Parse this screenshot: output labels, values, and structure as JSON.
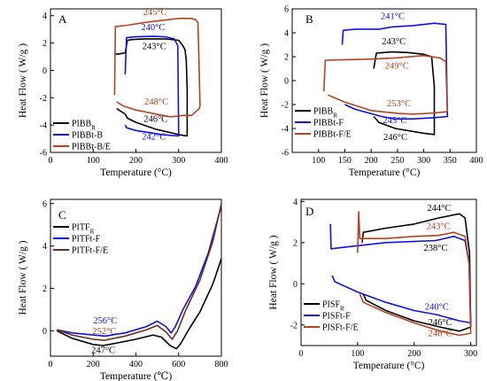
{
  "colors": {
    "black": "#000000",
    "blue": "#1010e6",
    "red": "#b5421e",
    "dark": "#6b3020"
  },
  "chart_data": [
    {
      "type": "line",
      "panel": "A",
      "xlabel": "Temperature (°C)",
      "ylabel": "Heat Flow  ( W/g )",
      "xlim": [
        0,
        400
      ],
      "ylim": [
        -6,
        4.5
      ],
      "xticks": [
        0,
        100,
        200,
        300,
        400
      ],
      "yticks": [
        -6,
        -4,
        -2,
        0,
        2,
        4
      ],
      "series": [
        {
          "name": "PIBB",
          "sub": "R",
          "color": "#000000",
          "points": [
            [
              150,
              1.2
            ],
            [
              160,
              1.2
            ],
            [
              170,
              1.25
            ],
            [
              175,
              1.3
            ],
            [
              180,
              2.2
            ],
            [
              190,
              2.25
            ],
            [
              220,
              2.3
            ],
            [
              243,
              2.3
            ],
            [
              270,
              2.3
            ],
            [
              300,
              2.2
            ],
            [
              305,
              2.0
            ],
            [
              310,
              1.8
            ],
            [
              315,
              1.5
            ],
            [
              318,
              0.7
            ],
            [
              320,
              -1.5
            ],
            [
              320,
              -4.8
            ],
            [
              300,
              -4.7
            ],
            [
              246,
              -4.3
            ],
            [
              200,
              -3.8
            ],
            [
              180,
              -3.5
            ],
            [
              175,
              -3.2
            ],
            [
              155,
              -2.8
            ]
          ]
        },
        {
          "name": "PIBBt-B",
          "sub": "",
          "color": "#1010e6",
          "points": [
            [
              175,
              -0.3
            ],
            [
              178,
              2.4
            ],
            [
              200,
              2.45
            ],
            [
              240,
              2.5
            ],
            [
              270,
              2.45
            ],
            [
              290,
              2.3
            ],
            [
              298,
              1.8
            ],
            [
              300,
              -4.8
            ],
            [
              260,
              -4.7
            ],
            [
              242,
              -4.6
            ],
            [
              200,
              -4.4
            ],
            [
              178,
              -4.2
            ],
            [
              175,
              -4.0
            ]
          ]
        },
        {
          "name": "PIBBt-B/E",
          "sub": "",
          "color": "#b5421e",
          "points": [
            [
              150,
              -1.8
            ],
            [
              152,
              3.2
            ],
            [
              180,
              3.3
            ],
            [
              220,
              3.5
            ],
            [
              245,
              3.6
            ],
            [
              300,
              3.8
            ],
            [
              330,
              3.8
            ],
            [
              340,
              3.7
            ],
            [
              345,
              3.5
            ],
            [
              347,
              1.5
            ],
            [
              350,
              -2.6
            ],
            [
              348,
              -2.8
            ],
            [
              330,
              -3.3
            ],
            [
              310,
              -3.3
            ],
            [
              280,
              -3.4
            ],
            [
              248,
              -3.2
            ],
            [
              200,
              -2.9
            ],
            [
              170,
              -2.6
            ],
            [
              155,
              -2.3
            ]
          ]
        }
      ],
      "annotations": [
        {
          "text": "245°C",
          "x": 245,
          "y": 4.05,
          "color": "#b5421e"
        },
        {
          "text": "240°C",
          "x": 240,
          "y": 2.95,
          "color": "#1010e6"
        },
        {
          "text": "243°C",
          "x": 243,
          "y": 1.55,
          "color": "#000000"
        },
        {
          "text": "248°C",
          "x": 248,
          "y": -2.5,
          "color": "#b5421e"
        },
        {
          "text": "246°C",
          "x": 246,
          "y": -3.75,
          "color": "#000000"
        },
        {
          "text": "242°C",
          "x": 242,
          "y": -5.05,
          "color": "#1010e6"
        }
      ]
    },
    {
      "type": "line",
      "panel": "B",
      "xlabel": "Temperature (°C)",
      "ylabel": "Heat Flow  ( W/g )",
      "xlim": [
        50,
        400
      ],
      "ylim": [
        -6,
        6
      ],
      "xticks": [
        100,
        150,
        200,
        250,
        300,
        350,
        400
      ],
      "yticks": [
        -6,
        -4,
        -2,
        0,
        2,
        4,
        6
      ],
      "series": [
        {
          "name": "PIBB",
          "sub": "R",
          "color": "#000000",
          "points": [
            [
              205,
              1.0
            ],
            [
              210,
              2.3
            ],
            [
              240,
              2.4
            ],
            [
              270,
              2.35
            ],
            [
              300,
              2.2
            ],
            [
              315,
              2.0
            ],
            [
              318,
              0.5
            ],
            [
              320,
              -0.5
            ],
            [
              320,
              -4.5
            ],
            [
              300,
              -4.4
            ],
            [
              246,
              -4.0
            ],
            [
              215,
              -3.5
            ],
            [
              205,
              -3.0
            ]
          ]
        },
        {
          "name": "PIBBt-F",
          "sub": "",
          "color": "#1010e6",
          "points": [
            [
              145,
              3.0
            ],
            [
              147,
              4.2
            ],
            [
              170,
              4.3
            ],
            [
              215,
              4.3
            ],
            [
              241,
              4.5
            ],
            [
              280,
              4.6
            ],
            [
              320,
              4.8
            ],
            [
              342,
              4.7
            ],
            [
              345,
              -3.0
            ],
            [
              320,
              -3.1
            ],
            [
              280,
              -3.2
            ],
            [
              245,
              -3.2
            ],
            [
              220,
              -3.0
            ],
            [
              170,
              -2.4
            ],
            [
              150,
              -2.0
            ]
          ]
        },
        {
          "name": "PIBBt-F/E",
          "sub": "",
          "color": "#b5421e",
          "points": [
            [
              110,
              -0.9
            ],
            [
              113,
              1.7
            ],
            [
              150,
              1.75
            ],
            [
              200,
              1.8
            ],
            [
              249,
              1.9
            ],
            [
              300,
              2.1
            ],
            [
              330,
              1.9
            ],
            [
              342,
              1.6
            ],
            [
              345,
              -2.6
            ],
            [
              320,
              -2.7
            ],
            [
              280,
              -2.8
            ],
            [
              253,
              -2.75
            ],
            [
              200,
              -2.5
            ],
            [
              150,
              -1.8
            ],
            [
              118,
              -1.2
            ]
          ]
        }
      ],
      "annotations": [
        {
          "text": "241°C",
          "x": 241,
          "y": 5.15,
          "color": "#1010e6"
        },
        {
          "text": "243°C",
          "x": 243,
          "y": 3.05,
          "color": "#000000"
        },
        {
          "text": "249°C",
          "x": 249,
          "y": 1.0,
          "color": "#b5421e"
        },
        {
          "text": "253°C",
          "x": 253,
          "y": -2.15,
          "color": "#b5421e"
        },
        {
          "text": "245°C",
          "x": 245,
          "y": -3.55,
          "color": "#1010e6"
        },
        {
          "text": "246°C",
          "x": 246,
          "y": -4.95,
          "color": "#000000"
        }
      ]
    },
    {
      "type": "line",
      "panel": "C",
      "xlabel": "Temperature (℃)",
      "ylabel": "Heat Flow  ( W/g )",
      "xlim": [
        0,
        800
      ],
      "ylim": [
        -1.2,
        6.2
      ],
      "xticks": [
        0,
        200,
        400,
        600,
        800
      ],
      "yticks": [
        0,
        2,
        4,
        6
      ],
      "series": [
        {
          "name": "PITF",
          "sub": "R",
          "color": "#000000",
          "points": [
            [
              30,
              0.0
            ],
            [
              100,
              -0.35
            ],
            [
              200,
              -0.65
            ],
            [
              247,
              -0.7
            ],
            [
              300,
              -0.6
            ],
            [
              400,
              -0.4
            ],
            [
              480,
              -0.2
            ],
            [
              520,
              -0.3
            ],
            [
              560,
              -0.7
            ],
            [
              590,
              -0.85
            ],
            [
              610,
              -0.6
            ],
            [
              650,
              0.1
            ],
            [
              700,
              0.9
            ],
            [
              760,
              2.2
            ],
            [
              800,
              3.4
            ]
          ]
        },
        {
          "name": "PITFt-F",
          "sub": "",
          "color": "#1010e6",
          "points": [
            [
              30,
              0.05
            ],
            [
              100,
              -0.1
            ],
            [
              200,
              -0.2
            ],
            [
              256,
              -0.25
            ],
            [
              350,
              -0.1
            ],
            [
              450,
              0.2
            ],
            [
              500,
              0.45
            ],
            [
              540,
              0.2
            ],
            [
              565,
              -0.1
            ],
            [
              585,
              0.2
            ],
            [
              620,
              1.0
            ],
            [
              680,
              2.1
            ],
            [
              740,
              3.7
            ],
            [
              800,
              5.9
            ]
          ]
        },
        {
          "name": "PITFt-F/E",
          "sub": "",
          "color": "#6b3020",
          "points": [
            [
              30,
              0.05
            ],
            [
              100,
              -0.2
            ],
            [
              200,
              -0.4
            ],
            [
              252,
              -0.45
            ],
            [
              350,
              -0.25
            ],
            [
              450,
              0.05
            ],
            [
              500,
              0.25
            ],
            [
              540,
              -0.05
            ],
            [
              570,
              -0.4
            ],
            [
              595,
              0.0
            ],
            [
              630,
              0.9
            ],
            [
              700,
              2.4
            ],
            [
              760,
              4.2
            ],
            [
              800,
              6.0
            ]
          ]
        }
      ],
      "annotations": [
        {
          "text": "256°C",
          "x": 256,
          "y": 0.35,
          "color": "#1010e6"
        },
        {
          "text": "252°C",
          "x": 252,
          "y": -0.15,
          "color": "#b5421e"
        },
        {
          "text": "247°C",
          "x": 247,
          "y": -1.05,
          "color": "#000000"
        }
      ]
    },
    {
      "type": "line",
      "panel": "D",
      "xlabel": "Temperature (°C)",
      "ylabel": "Heat Flow  ( W/g )",
      "xlim": [
        0,
        310
      ],
      "ylim": [
        -3,
        4.1
      ],
      "xticks": [
        0,
        100,
        200,
        300
      ],
      "yticks": [
        -2,
        0,
        2,
        4
      ],
      "series": [
        {
          "name": "PISF",
          "sub": "R",
          "color": "#000000",
          "points": [
            [
              108,
              2.0
            ],
            [
              110,
              2.5
            ],
            [
              150,
              2.7
            ],
            [
              200,
              2.9
            ],
            [
              244,
              3.2
            ],
            [
              280,
              3.4
            ],
            [
              290,
              3.2
            ],
            [
              298,
              1.5
            ],
            [
              300,
              -2.1
            ],
            [
              280,
              -2.3
            ],
            [
              246,
              -2.1
            ],
            [
              200,
              -1.8
            ],
            [
              150,
              -1.3
            ],
            [
              115,
              -0.8
            ],
            [
              110,
              -0.5
            ]
          ]
        },
        {
          "name": "PISFt-F",
          "sub": "",
          "color": "#1010e6",
          "points": [
            [
              52,
              2.9
            ],
            [
              53,
              1.7
            ],
            [
              100,
              1.85
            ],
            [
              150,
              2.0
            ],
            [
              238,
              2.1
            ],
            [
              270,
              2.3
            ],
            [
              290,
              2.1
            ],
            [
              297,
              1.0
            ],
            [
              300,
              -1.9
            ],
            [
              280,
              -1.8
            ],
            [
              240,
              -1.5
            ],
            [
              200,
              -1.3
            ],
            [
              150,
              -0.9
            ],
            [
              100,
              -0.4
            ],
            [
              60,
              0.1
            ],
            [
              55,
              0.4
            ]
          ]
        },
        {
          "name": "PISFt-F/E",
          "sub": "",
          "color": "#b5421e",
          "points": [
            [
              100,
              1.5
            ],
            [
              102,
              3.5
            ],
            [
              104,
              2.2
            ],
            [
              150,
              2.2
            ],
            [
              200,
              2.3
            ],
            [
              243,
              2.35
            ],
            [
              270,
              2.5
            ],
            [
              290,
              2.3
            ],
            [
              297,
              1.0
            ],
            [
              300,
              -2.4
            ],
            [
              280,
              -2.5
            ],
            [
              246,
              -2.3
            ],
            [
              200,
              -1.9
            ],
            [
              150,
              -1.4
            ],
            [
              110,
              -0.9
            ],
            [
              104,
              -0.5
            ]
          ]
        }
      ],
      "annotations": [
        {
          "text": "244°C",
          "x": 244,
          "y": 3.55,
          "color": "#000000"
        },
        {
          "text": "243°C",
          "x": 243,
          "y": 2.65,
          "color": "#b5421e"
        },
        {
          "text": "238°C",
          "x": 238,
          "y": 1.6,
          "color": "#000000"
        },
        {
          "text": "240°C",
          "x": 240,
          "y": -1.25,
          "color": "#1010e6"
        },
        {
          "text": "246°C",
          "x": 246,
          "y": -2.0,
          "color": "#000000"
        },
        {
          "text": "246°C",
          "x": 246,
          "y": -2.55,
          "color": "#b5421e"
        }
      ]
    }
  ]
}
